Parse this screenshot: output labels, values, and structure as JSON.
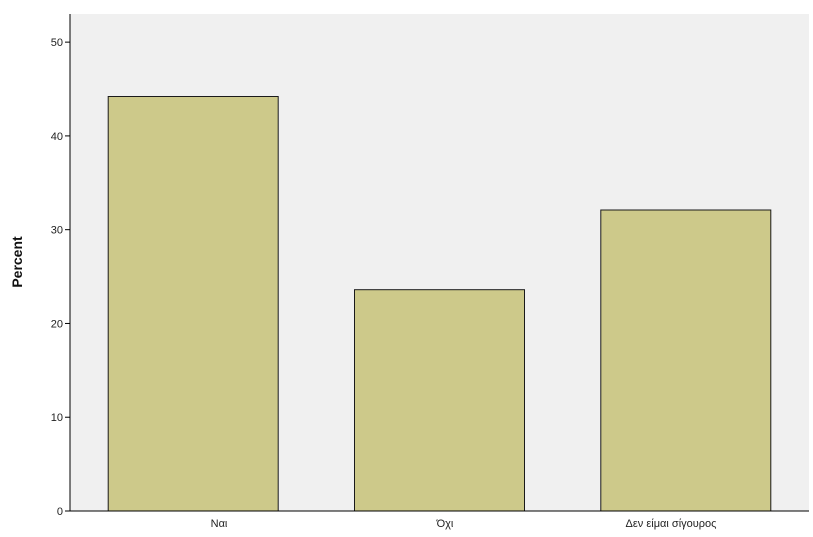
{
  "chart_data": {
    "type": "bar",
    "categories": [
      "Ναι",
      "Όχι",
      "Δεν είμαι σίγουρος"
    ],
    "values": [
      44.2,
      23.6,
      32.1
    ],
    "title": "",
    "xlabel": "",
    "ylabel": "Percent",
    "ylim": [
      0,
      53
    ],
    "yticks": [
      0,
      10,
      20,
      30,
      40,
      50
    ],
    "grid": false,
    "legend": "none",
    "colors": {
      "bar_fill": "#cdc98a",
      "bar_stroke": "#1a1a1a",
      "plot_background": "#f0f0f0",
      "axis": "#000000"
    }
  }
}
